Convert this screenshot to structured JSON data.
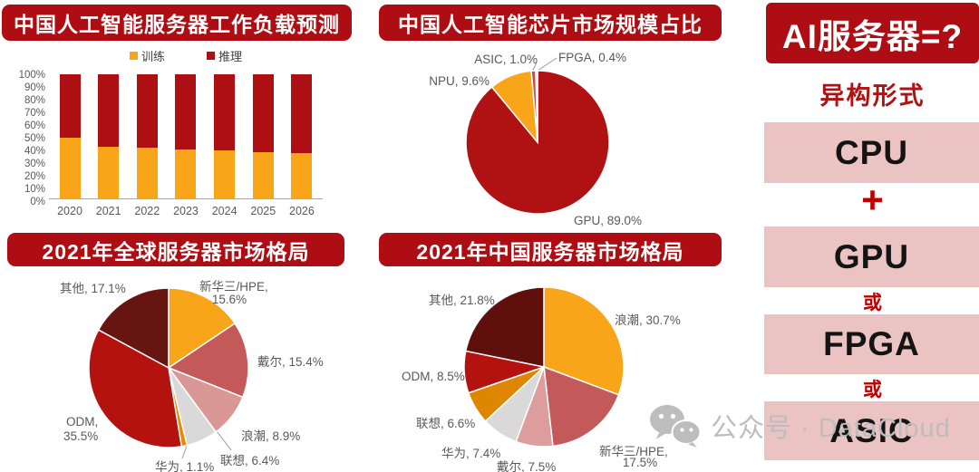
{
  "chart_data": [
    {
      "type": "bar",
      "stacked": true,
      "title": "中国人工智能服务器工作负载预测",
      "categories": [
        "2020",
        "2021",
        "2022",
        "2023",
        "2024",
        "2025",
        "2026"
      ],
      "series": [
        {
          "name": "训练",
          "color": "#F9A51A",
          "values": [
            49,
            42,
            41,
            40,
            39,
            38,
            37
          ]
        },
        {
          "name": "推理",
          "color": "#AD0F12",
          "values": [
            51,
            58,
            59,
            60,
            61,
            62,
            63
          ]
        }
      ],
      "ylim": [
        0,
        100
      ],
      "ytick_step": 10,
      "ytick_suffix": "%",
      "legend_position": "top"
    },
    {
      "type": "pie",
      "title": "中国人工智能芯片市场规模占比",
      "slices": [
        {
          "name": "GPU",
          "value": 89.0,
          "color": "#B01113"
        },
        {
          "name": "NPU",
          "value": 9.6,
          "color": "#F9A51A"
        },
        {
          "name": "ASIC",
          "value": 1.0,
          "color": "#C0504D"
        },
        {
          "name": "FPGA",
          "value": 0.4,
          "color": "#E6B9B8"
        }
      ],
      "labels": {
        "gpu": "GPU, 89.0%",
        "npu": "NPU, 9.6%",
        "asic": "ASIC, 1.0%",
        "fpga": "FPGA, 0.4%"
      }
    },
    {
      "type": "pie",
      "title": "2021年全球服务器市场格局",
      "slices": [
        {
          "name": "新华三/HPE",
          "value": 15.6,
          "color": "#F9A51A"
        },
        {
          "name": "戴尔",
          "value": 15.4,
          "color": "#C4595A"
        },
        {
          "name": "浪潮",
          "value": 8.9,
          "color": "#D99896"
        },
        {
          "name": "联想",
          "value": 6.4,
          "color": "#D9D9D9"
        },
        {
          "name": "华为",
          "value": 1.1,
          "color": "#E38C00"
        },
        {
          "name": "ODM",
          "value": 35.5,
          "color": "#B3120F"
        },
        {
          "name": "其他",
          "value": 17.1,
          "color": "#671511"
        }
      ],
      "labels": {
        "qita": "其他, 17.1%",
        "xinhua1": "新华三/HPE,",
        "xinhua2": "15.6%",
        "dell": "戴尔, 15.4%",
        "langchao": "浪潮, 8.9%",
        "lianxiang": "联想, 6.4%",
        "huawei": "华为, 1.1%",
        "odm1": "ODM,",
        "odm2": "35.5%"
      }
    },
    {
      "type": "pie",
      "title": "2021年中国服务器市场格局",
      "slices": [
        {
          "name": "浪潮",
          "value": 30.7,
          "color": "#F9A51A"
        },
        {
          "name": "新华三/HPE",
          "value": 17.5,
          "color": "#C4595A"
        },
        {
          "name": "戴尔",
          "value": 7.5,
          "color": "#DC9D9C"
        },
        {
          "name": "华为",
          "value": 7.4,
          "color": "#D9D9D9"
        },
        {
          "name": "联想",
          "value": 6.6,
          "color": "#DE8600"
        },
        {
          "name": "ODM",
          "value": 8.5,
          "color": "#B3120F"
        },
        {
          "name": "其他",
          "value": 21.8,
          "color": "#5F100C"
        }
      ],
      "labels": {
        "qita": "其他, 21.8%",
        "langchao": "浪潮, 30.7%",
        "odm": "ODM, 8.5%",
        "lianxiang": "联想, 6.6%",
        "huawei": "华为, 7.4%",
        "dell": "戴尔, 7.5%",
        "xinhua1": "新华三/HPE,",
        "xinhua2": "17.5%"
      }
    }
  ],
  "right_panel": {
    "header": "AI服务器=?",
    "subtitle": "异构形式",
    "boxes": [
      "CPU",
      "GPU",
      "FPGA",
      "ASIC"
    ],
    "plus": "+",
    "or": "或",
    "accent_red": "#B01113",
    "box_pink": "#EBC3C2"
  },
  "watermark": {
    "text": "公众号 · DataCloud"
  }
}
